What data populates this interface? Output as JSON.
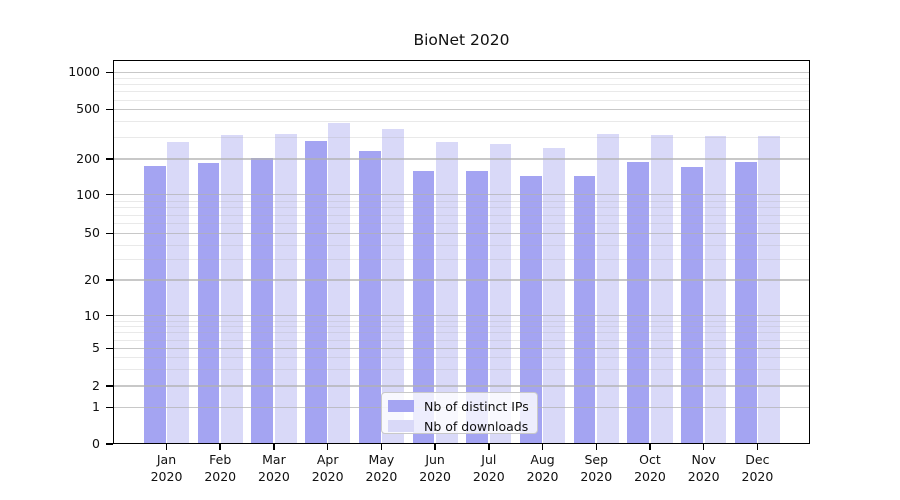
{
  "chart_data": {
    "type": "bar",
    "title": "BioNet 2020",
    "categories": [
      "Jan 2020",
      "Feb 2020",
      "Mar 2020",
      "Apr 2020",
      "May 2020",
      "Jun 2020",
      "Jul 2020",
      "Aug 2020",
      "Sep 2020",
      "Oct 2020",
      "Nov 2020",
      "Dec 2020"
    ],
    "series": [
      {
        "name": "Nb of distinct IPs",
        "color": "#a4a4f2",
        "values": [
          175,
          184,
          204,
          280,
          233,
          159,
          158,
          145,
          145,
          190,
          171,
          189
        ]
      },
      {
        "name": "Nb of downloads",
        "color": "#d9d9f8",
        "values": [
          274,
          313,
          320,
          386,
          345,
          274,
          265,
          244,
          319,
          311,
          306,
          306
        ]
      }
    ],
    "yscale": "symlog",
    "ylim": [
      0,
      1000
    ],
    "yticks": [
      0,
      1,
      2,
      5,
      10,
      20,
      50,
      100,
      200,
      500,
      1000
    ],
    "grid": true,
    "legend_position": "lower center"
  },
  "colors": {
    "axis": "#000000",
    "grid_major": "#b0b0b0",
    "grid_minor": "#e8e8e8",
    "background": "#ffffff"
  }
}
